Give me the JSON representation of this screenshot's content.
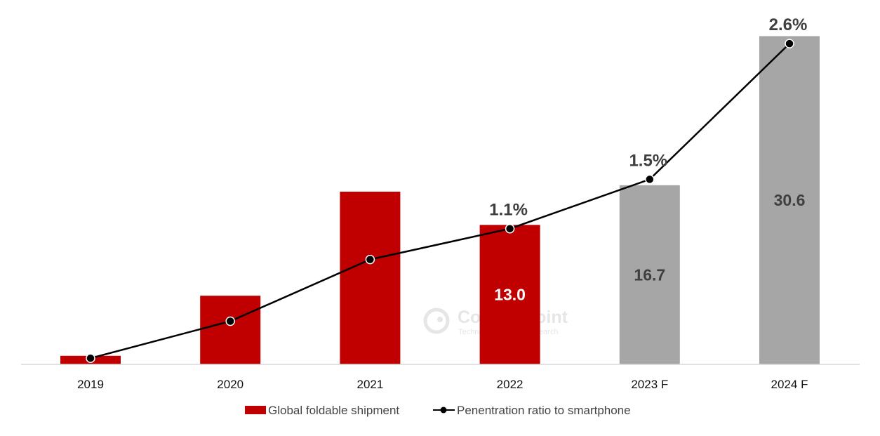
{
  "chart_data": {
    "type": "bar",
    "categories": [
      "2019",
      "2020",
      "2021",
      "2022",
      "2023 F",
      "2024 F"
    ],
    "series": [
      {
        "name": "Global foldable shipment",
        "type": "bar",
        "values": [
          0.8,
          6.4,
          16.1,
          13.0,
          16.7,
          30.6
        ],
        "value_labels": [
          "",
          "",
          "",
          "13.0",
          "16.7",
          "30.6"
        ],
        "colors": [
          "#c00000",
          "#c00000",
          "#c00000",
          "#c00000",
          "#a6a6a6",
          "#a6a6a6"
        ]
      },
      {
        "name": "Penentration ratio to smartphone",
        "type": "line",
        "values": [
          0.05,
          0.35,
          0.85,
          1.1,
          1.5,
          2.6
        ],
        "value_labels": [
          "",
          "",
          "",
          "1.1%",
          "1.5%",
          "2.6%"
        ],
        "color": "#000000"
      }
    ],
    "ylim": [
      0,
      32.2
    ],
    "y2lim": [
      0,
      2.8
    ],
    "legend": "bottom",
    "grid": false
  },
  "watermark": {
    "name": "Counterpoint",
    "tagline": "Technology Market Research"
  },
  "colors": {
    "actual_bar": "#c00000",
    "forecast_bar": "#a6a6a6",
    "line": "#000000",
    "axis": "#d9d9d9"
  }
}
